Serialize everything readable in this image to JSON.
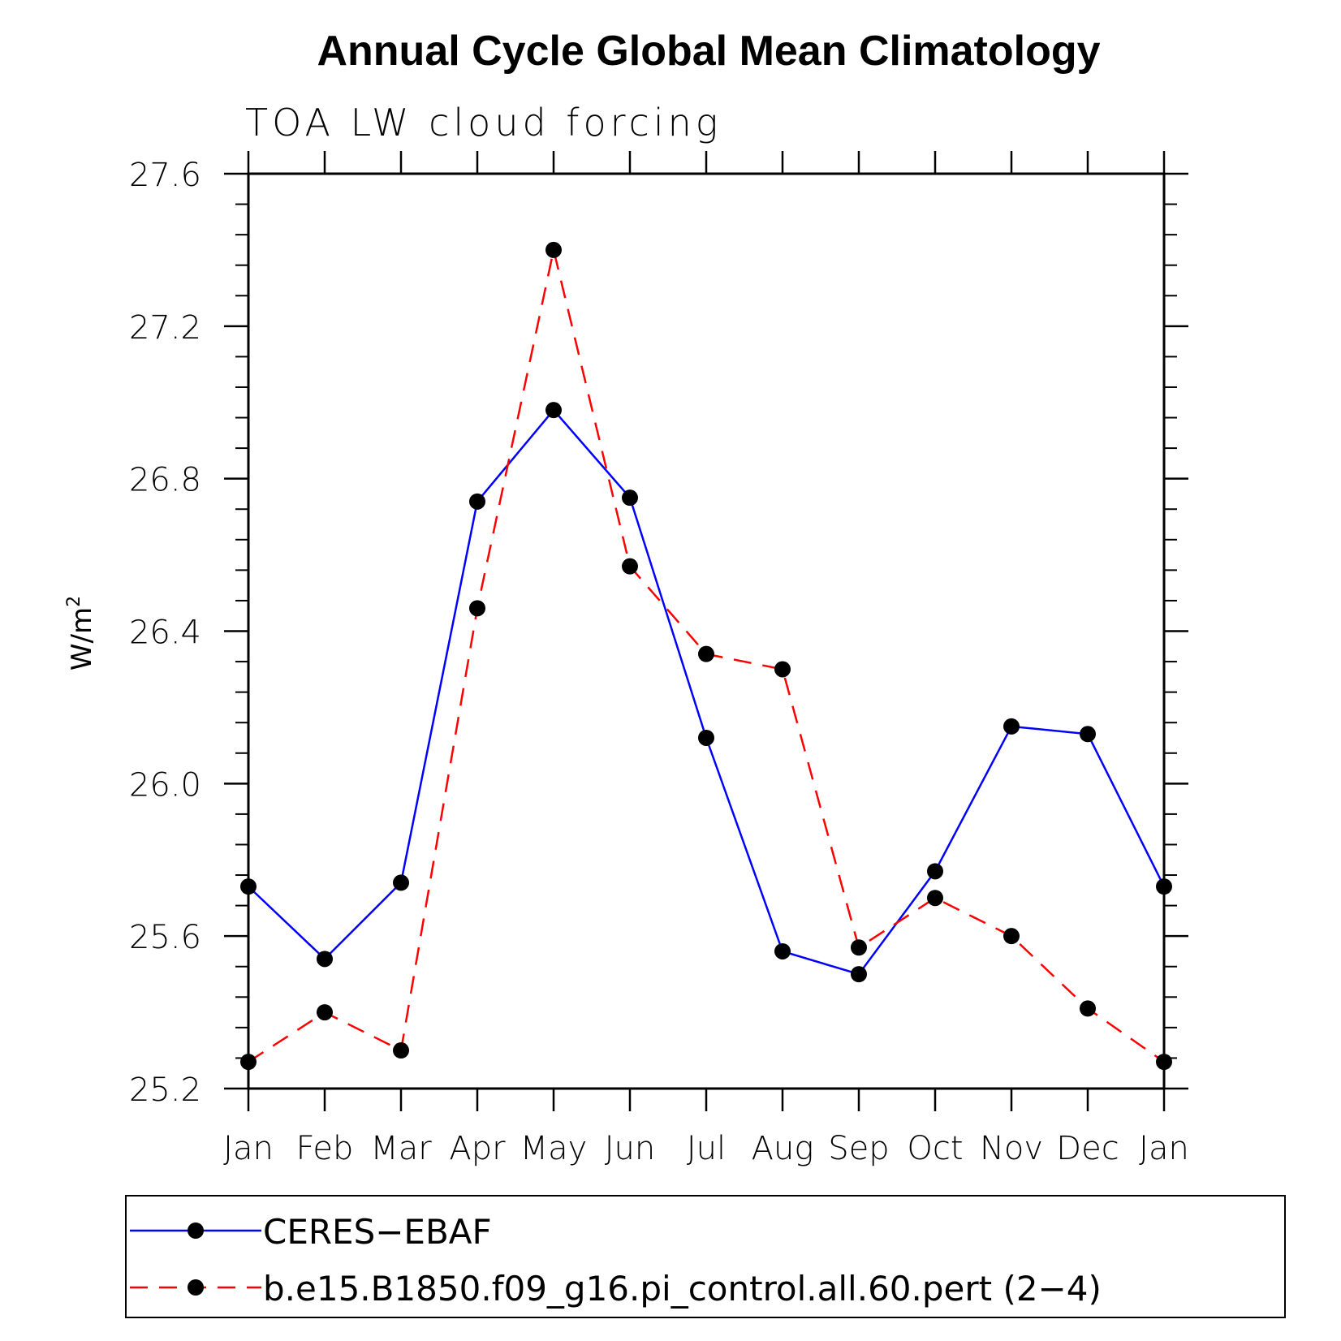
{
  "chart_data": {
    "type": "line",
    "title": "Annual Cycle Global Mean Climatology",
    "subtitle": "TOA LW cloud forcing",
    "ylabel": "W/m",
    "ylabel_sup": "2",
    "xlabel": "",
    "categories": [
      "Jan",
      "Feb",
      "Mar",
      "Apr",
      "May",
      "Jun",
      "Jul",
      "Aug",
      "Sep",
      "Oct",
      "Nov",
      "Dec",
      "Jan"
    ],
    "ylim": [
      25.2,
      27.6
    ],
    "yticks": [
      "25.2",
      "25.6",
      "26.0",
      "26.4",
      "26.8",
      "27.2",
      "27.6"
    ],
    "series": [
      {
        "name": "CERES−EBAF",
        "color": "#0000ff",
        "dashed": false,
        "values": [
          25.73,
          25.54,
          25.74,
          26.74,
          26.98,
          26.75,
          26.12,
          25.56,
          25.5,
          25.77,
          26.15,
          26.13,
          25.73
        ]
      },
      {
        "name": "b.e15.B1850.f09_g16.pi_control.all.60.pert (2−4)",
        "color": "#ff0000",
        "dashed": true,
        "values": [
          25.27,
          25.4,
          25.3,
          26.46,
          27.4,
          26.57,
          26.34,
          26.3,
          25.57,
          25.7,
          25.6,
          25.41,
          25.27
        ]
      }
    ],
    "marker_color": "#000000",
    "legend_position": "bottom"
  }
}
